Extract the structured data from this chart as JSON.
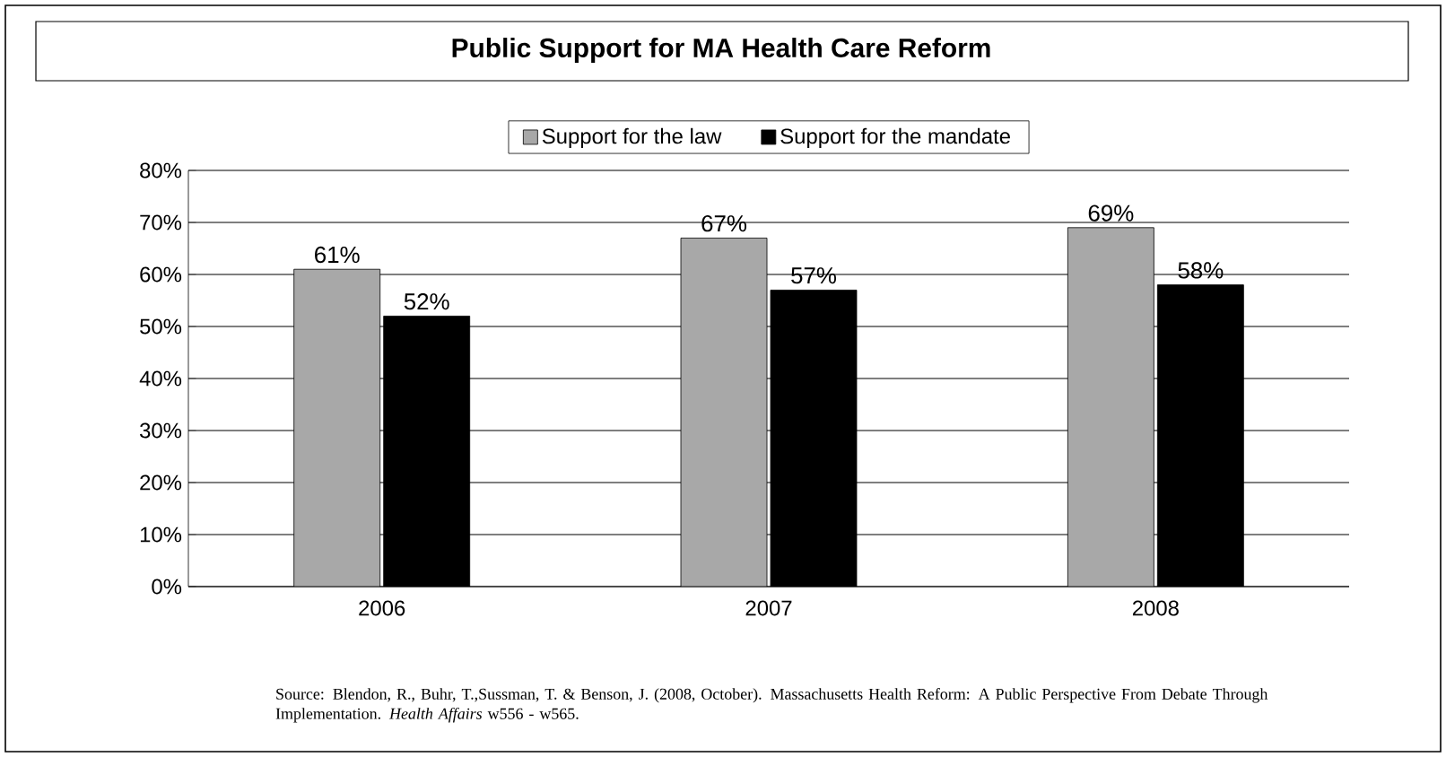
{
  "chart_data": {
    "type": "bar",
    "title": "Public Support for MA Health Care Reform",
    "categories": [
      "2006",
      "2007",
      "2008"
    ],
    "series": [
      {
        "name": "Support for the law",
        "color": "#a8a8a8",
        "values": [
          61,
          67,
          69
        ],
        "value_labels": [
          "61%",
          "67%",
          "69%"
        ]
      },
      {
        "name": "Support for the mandate",
        "color": "#000000",
        "values": [
          52,
          57,
          58
        ],
        "value_labels": [
          "52%",
          "57%",
          "58%"
        ]
      }
    ],
    "ylim": [
      0,
      80
    ],
    "yticks": [
      {
        "value": 0,
        "label": "0%"
      },
      {
        "value": 10,
        "label": "10%"
      },
      {
        "value": 20,
        "label": "20%"
      },
      {
        "value": 30,
        "label": "30%"
      },
      {
        "value": 40,
        "label": "40%"
      },
      {
        "value": 50,
        "label": "50%"
      },
      {
        "value": 60,
        "label": "60%"
      },
      {
        "value": 70,
        "label": "70%"
      },
      {
        "value": 80,
        "label": "80%"
      }
    ],
    "grid": "y",
    "legend": "top",
    "annotations": [
      "Source:  Blendon, R., Buhr, T.,Sussman, T. & Benson, J. (2008, October). Massachusetts Health Reform: A Public Perspective From Debate Through Implementation. *Health Affairs* w556 - w565."
    ]
  }
}
